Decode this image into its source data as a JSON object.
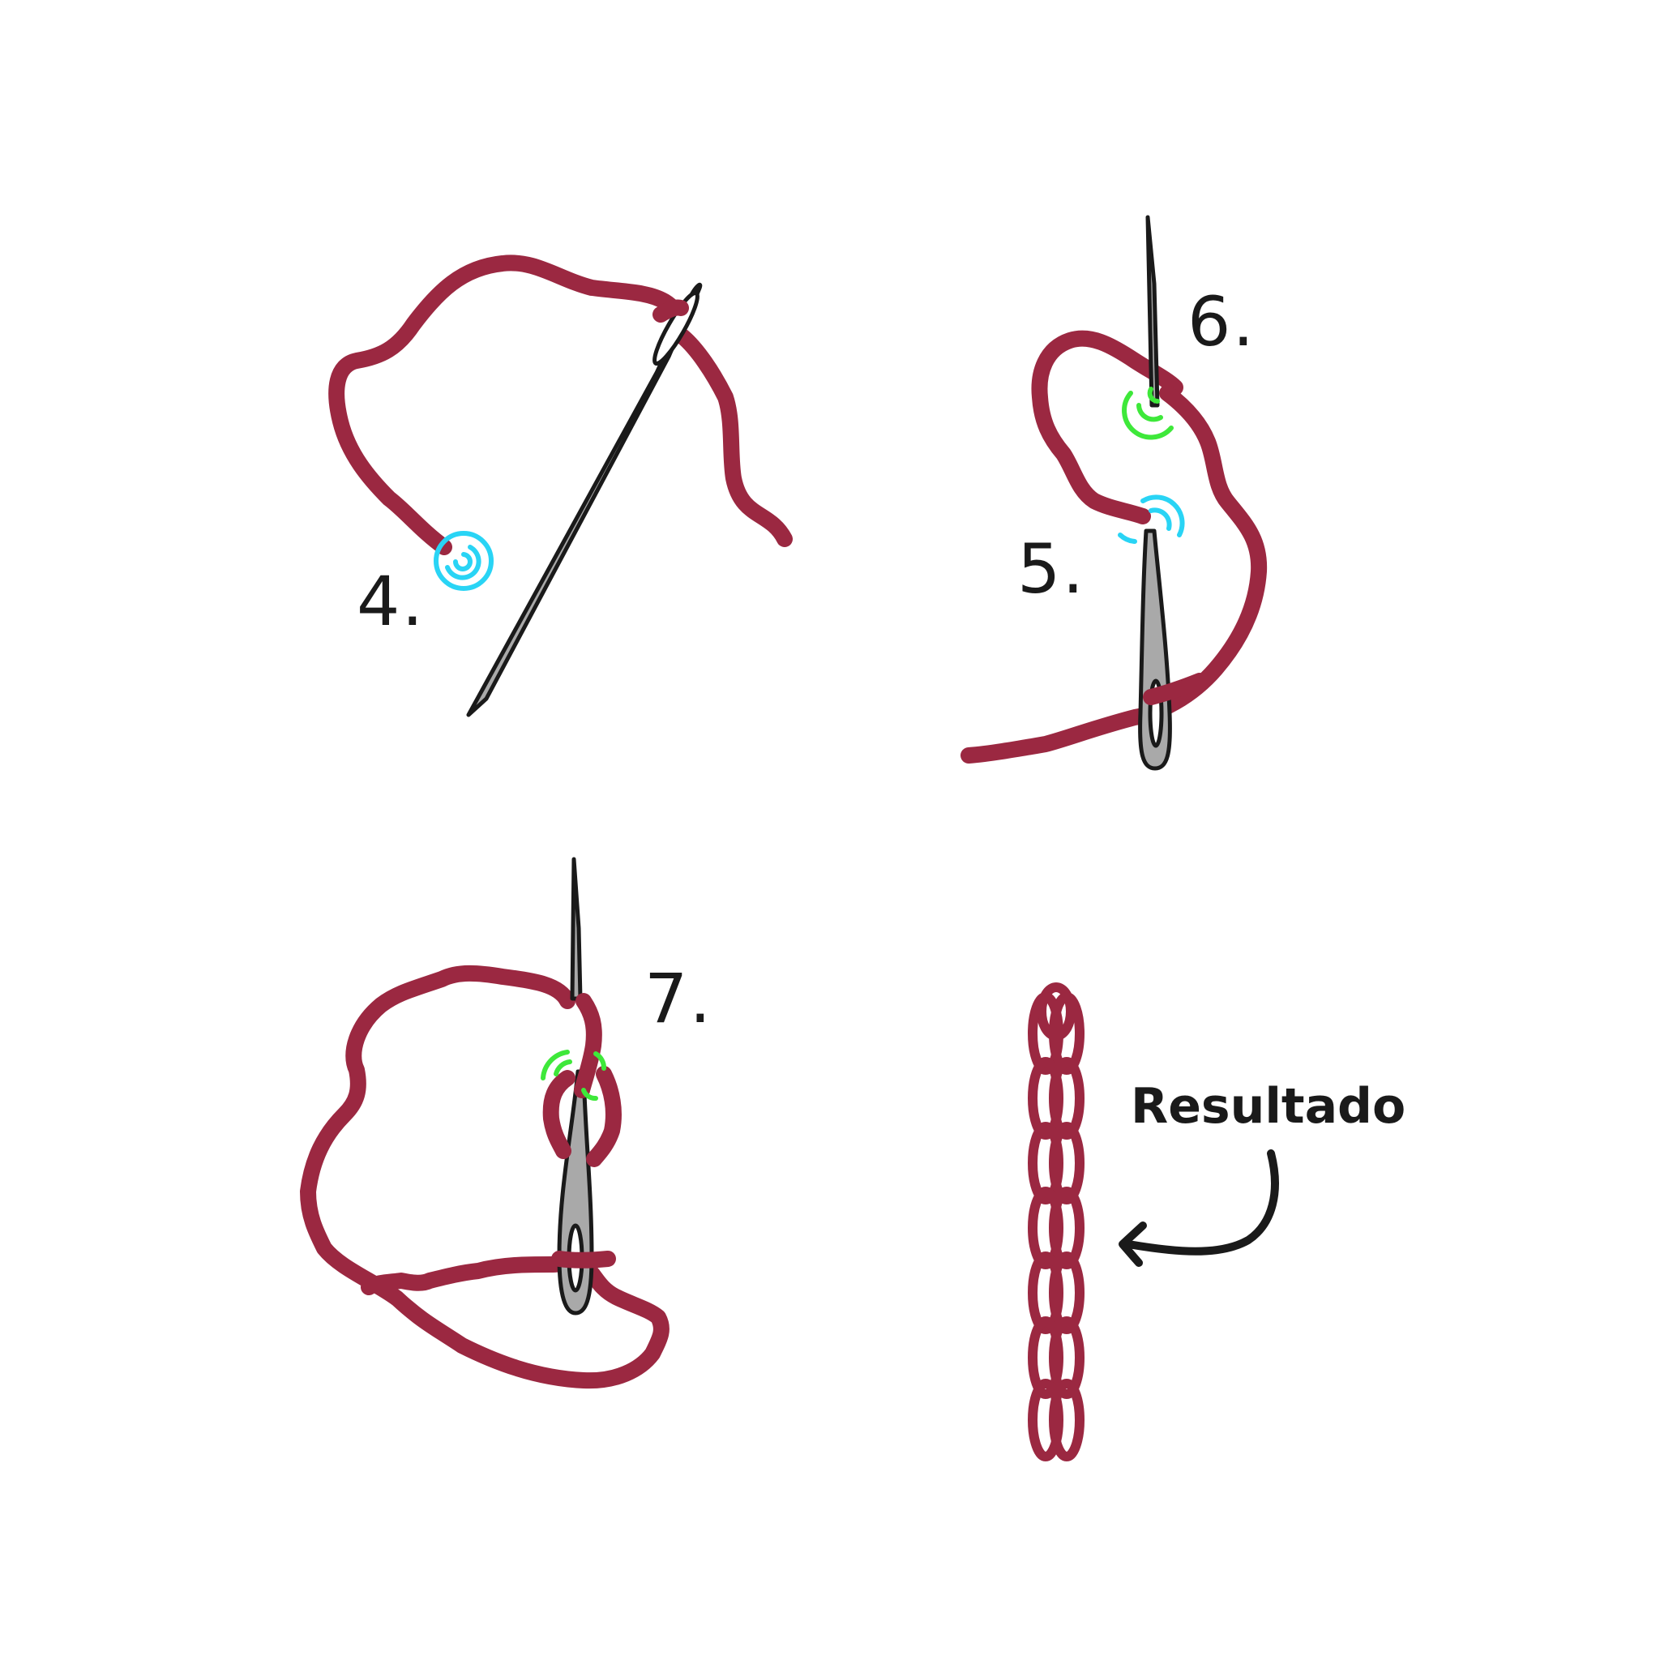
{
  "colors": {
    "thread": "#9b2841",
    "needle_fill": "#a9a9a9",
    "needle_outline": "#1a1a1a",
    "entry_mark": "#29d4f5",
    "exit_mark": "#3ee83a",
    "arrow": "#1a1a1a"
  },
  "steps": [
    {
      "number": "4.",
      "icon": "needle-icon",
      "marker": "entry-mark-icon"
    },
    {
      "number": "5.",
      "icon": "needle-icon",
      "marker": "entry-mark-icon"
    },
    {
      "number": "6.",
      "icon": "needle-icon",
      "marker": "exit-mark-icon"
    },
    {
      "number": "7.",
      "icon": "needle-icon",
      "marker": "exit-mark-icon"
    }
  ],
  "result": {
    "label": "Resultado",
    "icon": "chain-stitch-icon",
    "arrow_icon": "curved-arrow-icon"
  }
}
